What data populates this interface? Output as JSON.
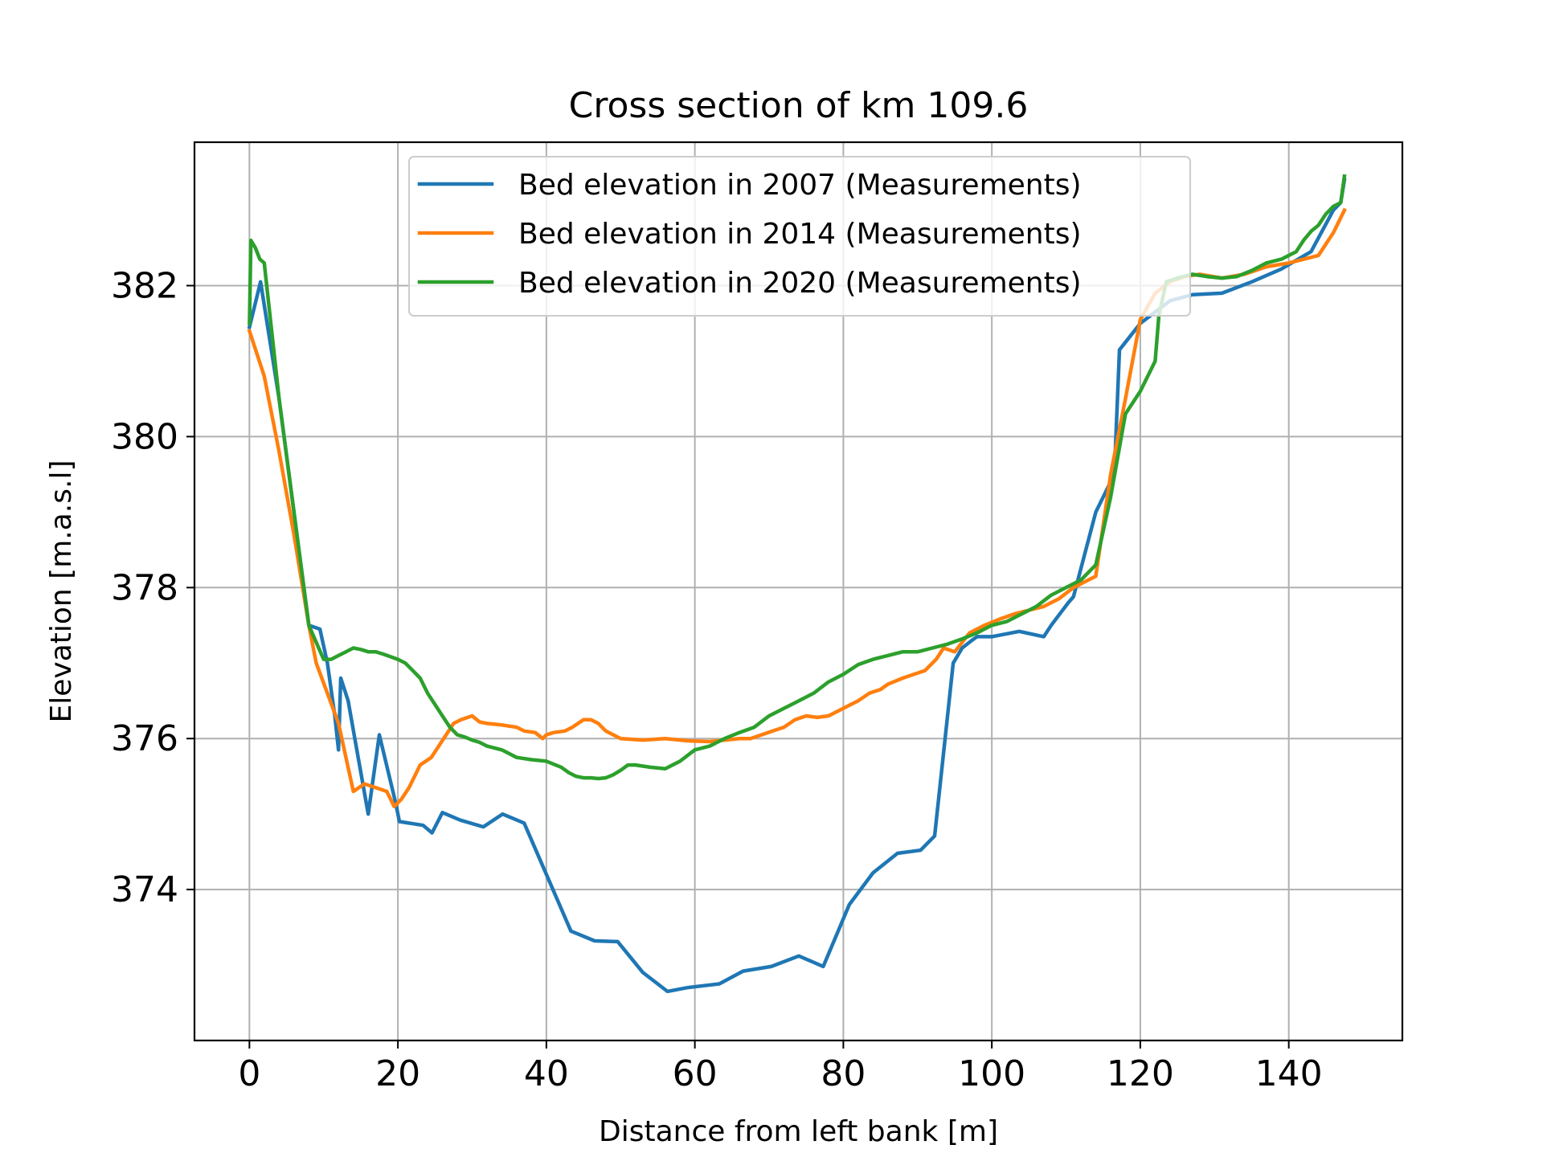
{
  "chart_data": {
    "type": "line",
    "title": "Cross section of km 109.6",
    "xlabel": "Distance from left bank [m]",
    "ylabel": "Elevation [m.a.s.l]",
    "xlim": [
      -7.4,
      155.3
    ],
    "ylim": [
      372.0,
      383.9
    ],
    "xticks": [
      0,
      20,
      40,
      60,
      80,
      100,
      120,
      140
    ],
    "yticks": [
      374,
      376,
      378,
      380,
      382
    ],
    "grid": true,
    "legend_position": "top-center",
    "series": [
      {
        "name": "Bed elevation in 2007 (Measurements)",
        "color": "#1f77b4",
        "x": [
          0,
          1.5,
          4,
          6,
          8,
          9.5,
          10.5,
          11.5,
          12.0,
          12.3,
          13.3,
          14.2,
          16.0,
          17.5,
          19.7,
          20.2,
          23.4,
          24.6,
          26.0,
          28.4,
          31.5,
          34.1,
          37.0,
          40.0,
          43.3,
          46.5,
          49.6,
          53.0,
          56.3,
          59.0,
          63.3,
          66.5,
          70.3,
          74.0,
          77.3,
          80.8,
          84.0,
          87.3,
          90.4,
          92.3,
          94.8,
          96.0,
          97.3,
          98.0,
          100.0,
          103.7,
          107.0,
          108.0,
          110.3,
          111.0,
          114.0,
          116.5,
          117.2,
          120.0,
          124.0,
          127.0,
          131.0,
          135.0,
          139.0,
          143.0,
          146.0,
          147.0,
          147.5
        ],
        "y": [
          381.45,
          382.05,
          380.5,
          379.0,
          377.5,
          377.45,
          377.0,
          376.3,
          375.85,
          376.8,
          376.5,
          376.0,
          375.0,
          376.05,
          375.15,
          374.9,
          374.85,
          374.75,
          375.02,
          374.92,
          374.83,
          375.0,
          374.88,
          374.2,
          373.45,
          373.32,
          373.31,
          372.9,
          372.65,
          372.7,
          372.75,
          372.92,
          372.98,
          373.12,
          372.98,
          373.8,
          374.22,
          374.48,
          374.52,
          374.71,
          377.0,
          377.2,
          377.3,
          377.35,
          377.35,
          377.42,
          377.35,
          377.5,
          377.8,
          377.88,
          379.0,
          379.5,
          381.15,
          381.5,
          381.8,
          381.88,
          381.9,
          382.05,
          382.22,
          382.45,
          383.0,
          383.1,
          383.4
        ]
      },
      {
        "name": "Bed elevation in 2014 (Measurements)",
        "color": "#ff7f0e",
        "x": [
          0,
          2,
          4,
          6,
          8,
          9,
          10.5,
          12,
          14,
          15.5,
          17,
          18.5,
          19.5,
          20.5,
          21.5,
          23,
          24.5,
          25.5,
          26.5,
          27.5,
          28.5,
          30,
          31,
          32,
          34,
          36,
          37,
          38.5,
          39.5,
          40,
          41,
          42.5,
          43.5,
          45,
          46,
          47,
          48,
          49,
          50,
          53,
          56,
          59,
          62,
          64,
          66,
          67.5,
          69,
          70.5,
          72,
          73.5,
          75,
          76.5,
          78,
          79,
          80,
          81,
          82,
          83.5,
          85,
          86,
          88,
          89.5,
          91,
          92.5,
          93.5,
          95,
          97,
          99,
          101,
          103,
          105,
          107,
          109,
          111,
          113,
          114,
          116,
          118,
          120,
          122,
          124,
          126,
          128,
          131,
          134,
          137,
          140,
          144,
          146,
          147.5
        ],
        "y": [
          381.4,
          380.8,
          379.8,
          378.7,
          377.5,
          377.0,
          376.6,
          376.2,
          375.3,
          375.4,
          375.35,
          375.3,
          375.1,
          375.2,
          375.35,
          375.65,
          375.75,
          375.9,
          376.05,
          376.2,
          376.25,
          376.3,
          376.22,
          376.2,
          376.18,
          376.15,
          376.1,
          376.08,
          376.0,
          376.05,
          376.08,
          376.1,
          376.15,
          376.25,
          376.25,
          376.2,
          376.1,
          376.05,
          376.0,
          375.98,
          376.0,
          375.97,
          375.96,
          375.98,
          376.0,
          376.0,
          376.05,
          376.1,
          376.15,
          376.25,
          376.3,
          376.28,
          376.3,
          376.35,
          376.4,
          376.45,
          376.5,
          376.6,
          376.65,
          376.72,
          376.8,
          376.85,
          376.9,
          377.05,
          377.2,
          377.15,
          377.4,
          377.5,
          377.58,
          377.65,
          377.7,
          377.75,
          377.85,
          378.0,
          378.1,
          378.15,
          379.5,
          380.5,
          381.55,
          381.9,
          382.05,
          382.12,
          382.15,
          382.1,
          382.15,
          382.25,
          382.3,
          382.4,
          382.7,
          383.0
        ]
      },
      {
        "name": "Bed elevation in 2020 (Measurements)",
        "color": "#2ca02c",
        "x": [
          0,
          0.2,
          0.8,
          1.4,
          2,
          4,
          6,
          8,
          10,
          11,
          12,
          13,
          14,
          15,
          16,
          17,
          18,
          20,
          21,
          22,
          23,
          24,
          25,
          26,
          27,
          28,
          29,
          30,
          31,
          32,
          34,
          36,
          38,
          40,
          42,
          43,
          44,
          45,
          46,
          47,
          48,
          49,
          50,
          51,
          52,
          54,
          56,
          58,
          60,
          62,
          64,
          66,
          68,
          70,
          72,
          74,
          76,
          78,
          80,
          82,
          84,
          86,
          88,
          90,
          92,
          94,
          96,
          98,
          100,
          102,
          104,
          106,
          108,
          110,
          112,
          114,
          116,
          118,
          120,
          122,
          122.5,
          123.5,
          125,
          127,
          129,
          131,
          133,
          135,
          137,
          139,
          141,
          142,
          143,
          144,
          145,
          146,
          147,
          147.5
        ],
        "y": [
          381.5,
          382.6,
          382.5,
          382.35,
          382.3,
          380.5,
          379.0,
          377.5,
          377.05,
          377.05,
          377.1,
          377.15,
          377.2,
          377.18,
          377.15,
          377.15,
          377.12,
          377.05,
          377.0,
          376.9,
          376.8,
          376.6,
          376.45,
          376.3,
          376.15,
          376.05,
          376.02,
          375.98,
          375.95,
          375.9,
          375.85,
          375.75,
          375.72,
          375.7,
          375.62,
          375.55,
          375.5,
          375.48,
          375.48,
          375.47,
          375.48,
          375.52,
          375.58,
          375.65,
          375.65,
          375.62,
          375.6,
          375.7,
          375.85,
          375.9,
          376.0,
          376.08,
          376.15,
          376.3,
          376.4,
          376.5,
          376.6,
          376.75,
          376.85,
          376.98,
          377.05,
          377.1,
          377.15,
          377.15,
          377.2,
          377.25,
          377.32,
          377.4,
          377.5,
          377.55,
          377.65,
          377.75,
          377.9,
          378.0,
          378.1,
          378.3,
          379.2,
          380.3,
          380.6,
          381.0,
          381.6,
          382.05,
          382.1,
          382.15,
          382.12,
          382.1,
          382.12,
          382.2,
          382.3,
          382.35,
          382.45,
          382.6,
          382.72,
          382.8,
          382.95,
          383.05,
          383.1,
          383.45
        ]
      }
    ]
  }
}
